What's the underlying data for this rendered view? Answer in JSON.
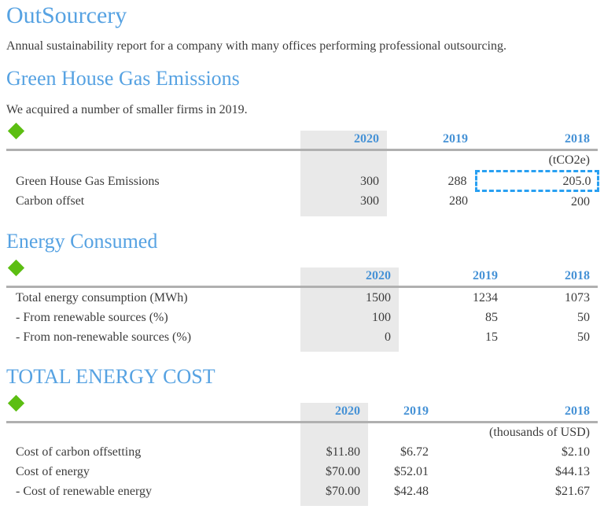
{
  "page": {
    "title": "OutSourcery",
    "intro": "Annual sustainability report for a company with many offices performing professional outsourcing."
  },
  "colors": {
    "heading_blue": "#56a2e2",
    "year_blue": "#4692d6",
    "text": "#3c3c3c",
    "column_highlight": "#e9e9e9",
    "rule_gray": "#b0b0b0",
    "diamond_green": "#5cbe12",
    "selection_blue": "#29a0f2"
  },
  "sections": [
    {
      "heading": "Green House Gas Emissions",
      "note": "We acquired a number of smaller firms in 2019.",
      "table": {
        "columns": [
          "2020",
          "2019",
          "2018"
        ],
        "highlighted_column": "2020",
        "unit": "(tCO2e)",
        "rows": [
          {
            "label": "Green House Gas Emissions",
            "values": [
              "300",
              "288",
              "205.0"
            ],
            "selected": 2
          },
          {
            "label": "Carbon offset",
            "values": [
              "300",
              "280",
              "200"
            ]
          }
        ]
      }
    },
    {
      "heading": "Energy Consumed",
      "table": {
        "columns": [
          "2020",
          "2019",
          "2018"
        ],
        "highlighted_column": "2020",
        "unit": "",
        "rows": [
          {
            "label": "Total energy consumption (MWh)",
            "values": [
              "1500",
              "1234",
              "1073"
            ]
          },
          {
            "label": "- From renewable sources (%)",
            "values": [
              "100",
              "85",
              "50"
            ]
          },
          {
            "label": "- From non-renewable sources (%)",
            "values": [
              "0",
              "15",
              "50"
            ]
          }
        ]
      }
    },
    {
      "heading": "TOTAL ENERGY COST",
      "table": {
        "columns": [
          "2020",
          "2019",
          "2018"
        ],
        "highlighted_column": "2020",
        "unit": "(thousands of USD)",
        "rows": [
          {
            "label": "Cost of carbon offsetting",
            "values": [
              "$11.80",
              "$6.72",
              "$2.10"
            ]
          },
          {
            "label": "Cost of energy",
            "values": [
              "$70.00",
              "$52.01",
              "$44.13"
            ]
          },
          {
            "label": "- Cost of renewable energy",
            "values": [
              "$70.00",
              "$42.48",
              "$21.67"
            ]
          }
        ]
      }
    }
  ]
}
